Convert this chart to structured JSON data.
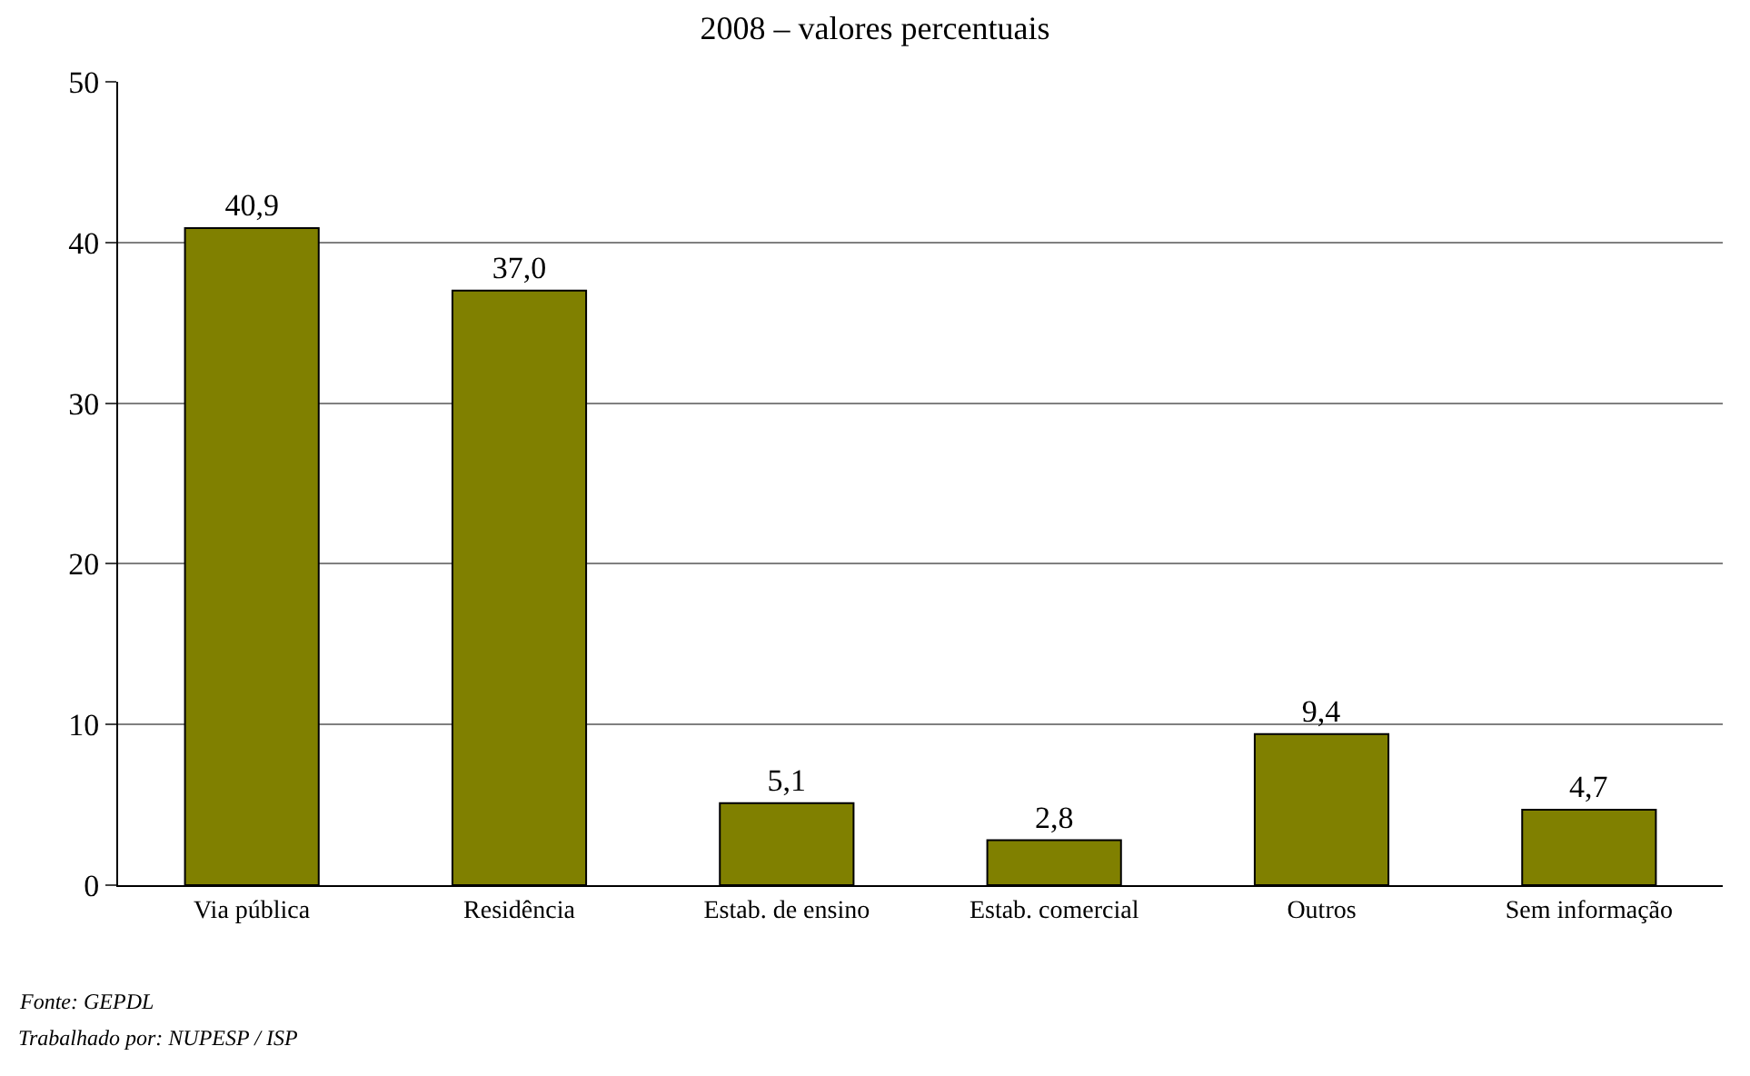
{
  "chart_data": {
    "type": "bar",
    "title": "2008 – valores percentuais",
    "categories": [
      "Via pública",
      "Residência",
      "Estab. de ensino",
      "Estab. comercial",
      "Outros",
      "Sem informação"
    ],
    "values": [
      40.9,
      37.0,
      5.1,
      2.8,
      9.4,
      4.7
    ],
    "value_labels": [
      "40,9",
      "37,0",
      "5,1",
      "2,8",
      "9,4",
      "4,7"
    ],
    "color": "#808000",
    "ylim": [
      0,
      50
    ],
    "yticks": [
      0,
      10,
      20,
      30,
      40,
      50
    ],
    "grid": "y",
    "annotations": [
      "Fonte: GEPDL",
      "Trabalhado por: NUPESP / ISP"
    ]
  }
}
